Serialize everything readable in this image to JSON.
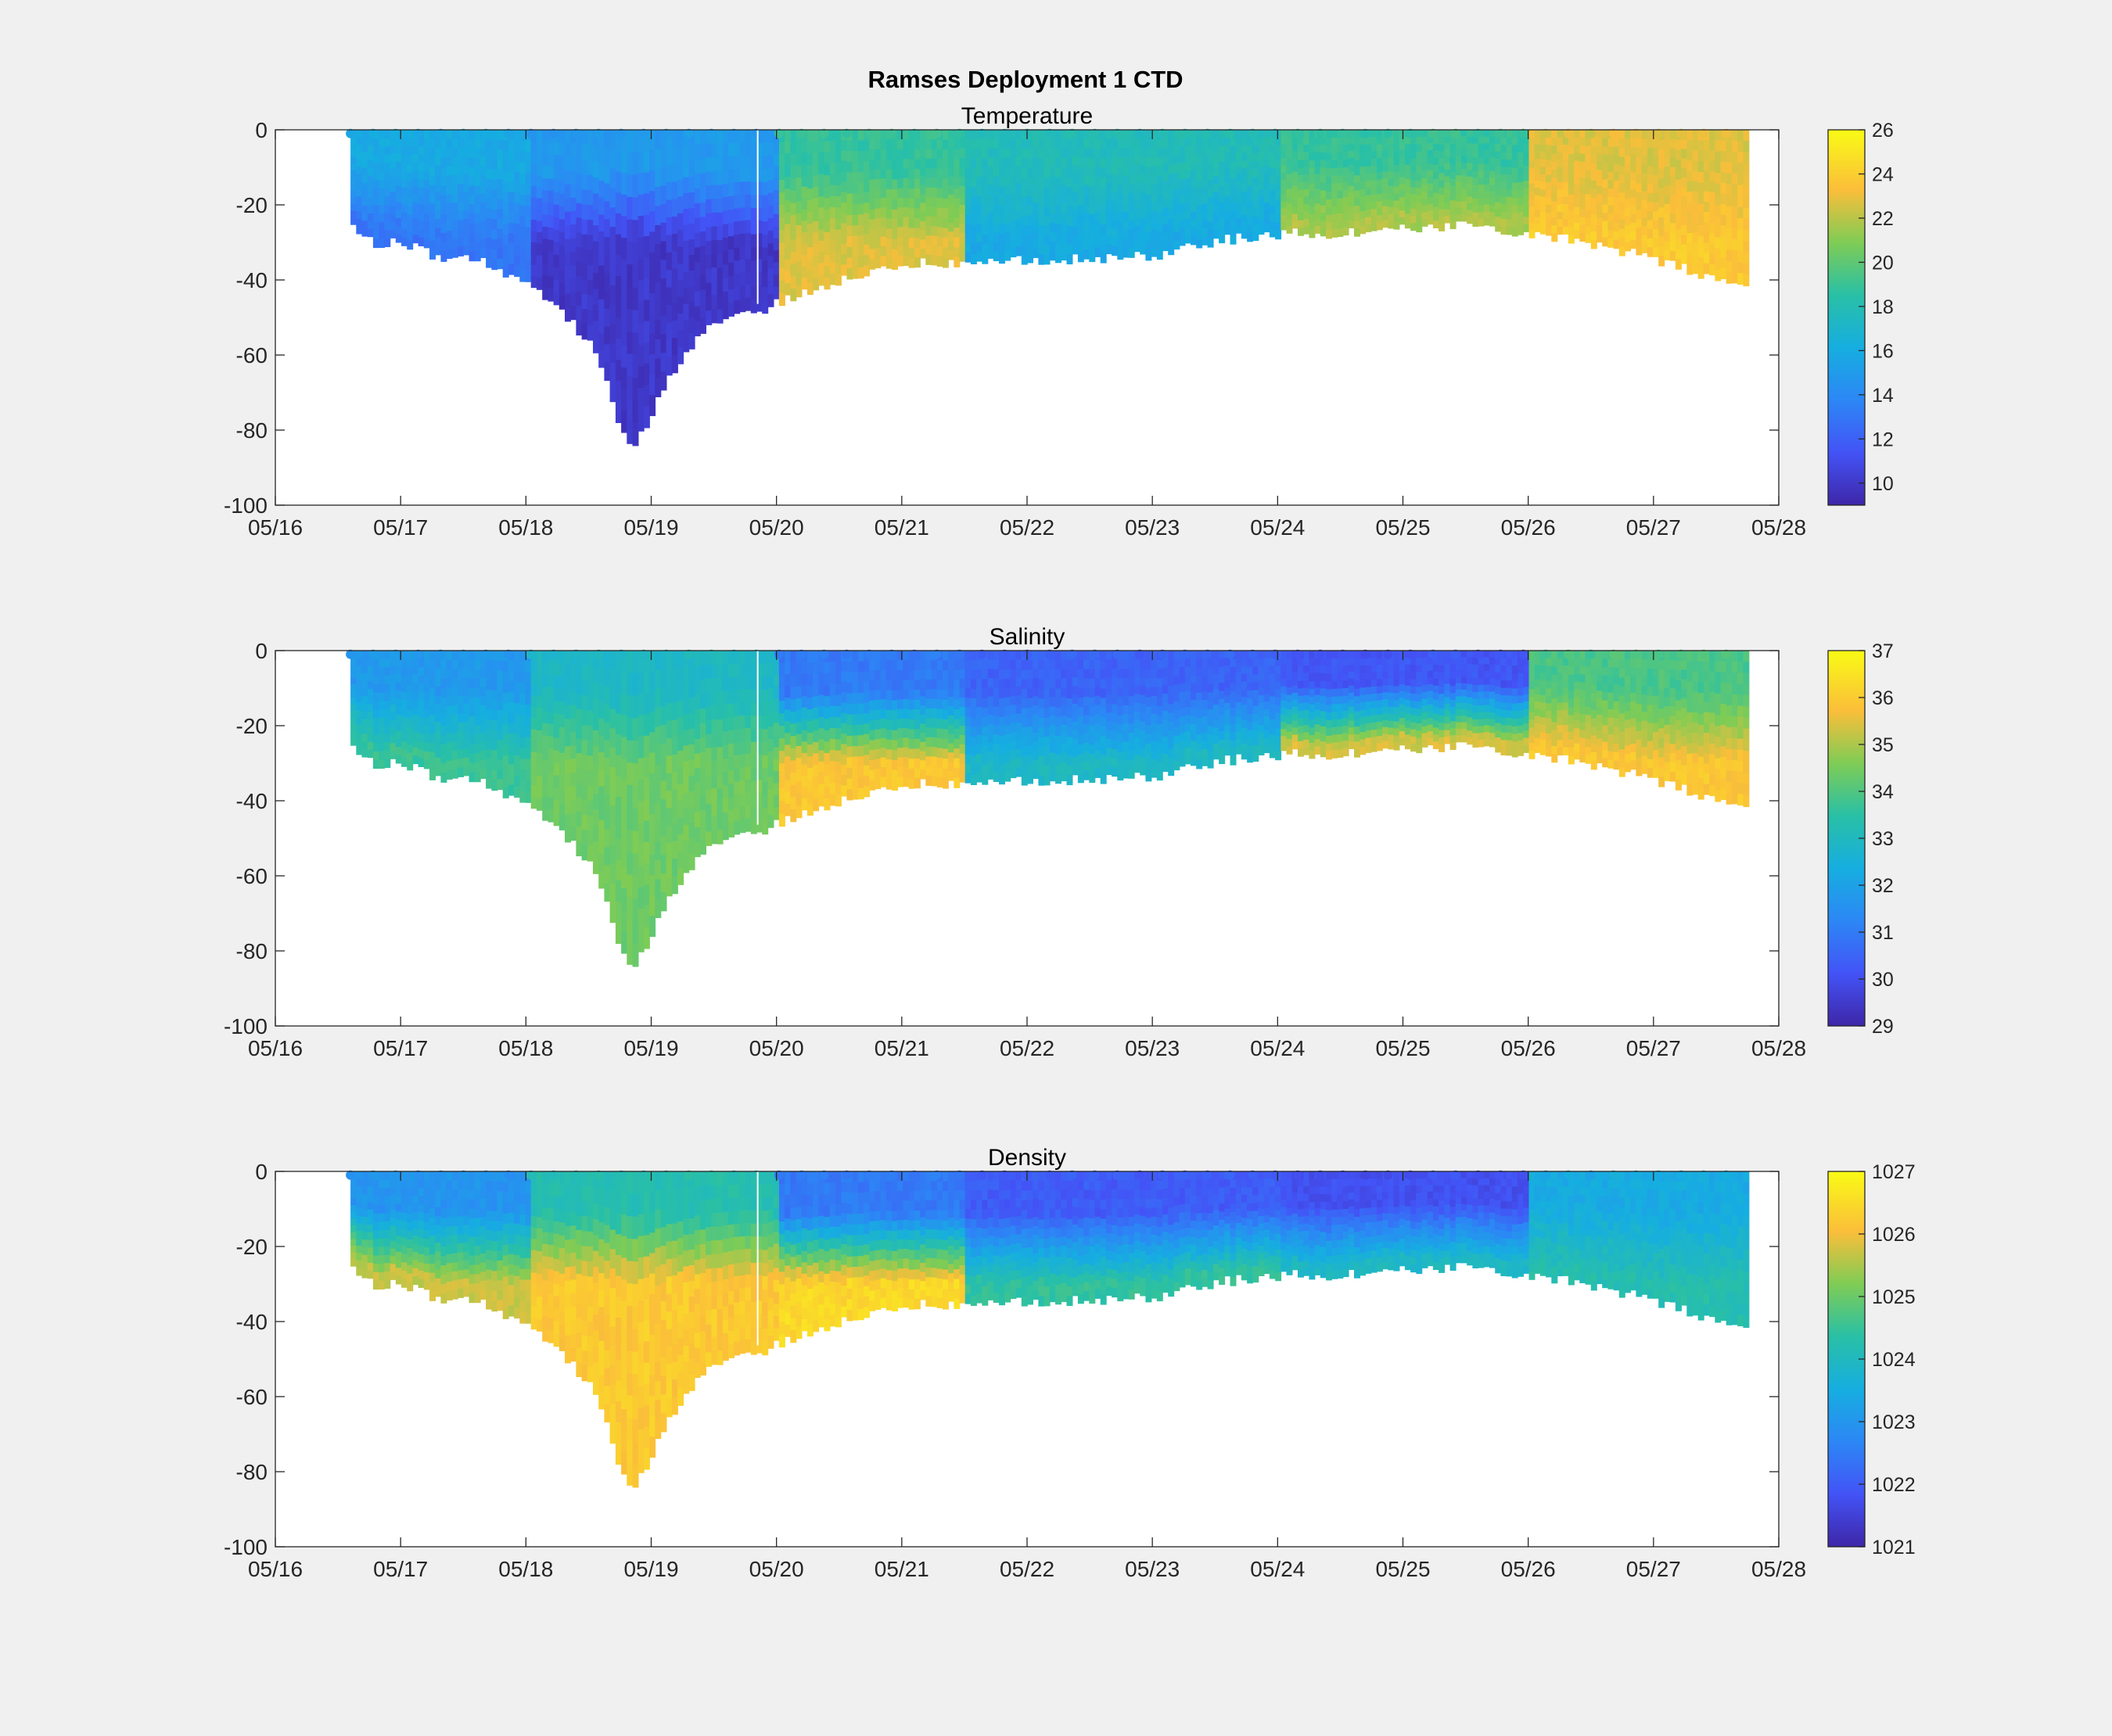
{
  "figure": {
    "title": "Ramses Deployment 1 CTD"
  },
  "chart_data": [
    {
      "type": "heatmap",
      "title": "Temperature",
      "xlabel": "",
      "ylabel": "",
      "x_ticks": [
        "05/16",
        "05/17",
        "05/18",
        "05/19",
        "05/20",
        "05/21",
        "05/22",
        "05/23",
        "05/24",
        "05/25",
        "05/26",
        "05/27",
        "05/28"
      ],
      "xlim": [
        "05/16",
        "05/28"
      ],
      "y_ticks": [
        0,
        -20,
        -40,
        -60,
        -80,
        -100
      ],
      "ylim": [
        -100,
        0
      ],
      "colorbar": {
        "ticks": [
          10,
          12,
          14,
          16,
          18,
          20,
          22,
          24,
          26
        ],
        "range": [
          9,
          26
        ]
      },
      "profile_bottom_depth": {
        "day": [
          16.6,
          16.8,
          17.0,
          17.3,
          17.6,
          17.9,
          18.2,
          18.5,
          18.8,
          18.9,
          19.1,
          19.4,
          19.8,
          20.2,
          20.6,
          21.0,
          21.5,
          22.0,
          22.5,
          23.0,
          23.5,
          24.0,
          24.5,
          25.0,
          25.5,
          26.0,
          26.5,
          27.0,
          27.5,
          27.75
        ],
        "depth": [
          -25,
          -29,
          -28,
          -33,
          -33,
          -38,
          -45,
          -55,
          -83,
          -80,
          -65,
          -52,
          -47,
          -42,
          -37,
          -34,
          -34,
          -33,
          -33,
          -32,
          -28,
          -26,
          -26,
          -25,
          -24,
          -26,
          -29,
          -33,
          -38,
          -40
        ]
      },
      "approx_values": {
        "note": "representative readings of the colour field",
        "regions": [
          {
            "days": "05/16.6-05/18",
            "surface_0_to_-20": 16,
            "deep_-20_to_bottom": 13
          },
          {
            "days": "05/18-05/20",
            "surface_0_to_-20": 15,
            "deep_-20_to_bottom": 10
          },
          {
            "days": "05/20.3-05/21.5",
            "surface_0_to_-20": 19,
            "deep_-20_to_bottom": 23
          },
          {
            "days": "05/21.5-05/24",
            "surface_0_to_-20": 18,
            "deep_-20_to_bottom": 16
          },
          {
            "days": "05/24-05/26",
            "surface_0_to_-20": 19,
            "deep_-20_to_bottom": 22
          },
          {
            "days": "05/26-05/27.75",
            "surface_0_to_-20": 23,
            "deep_-20_to_bottom": 24
          }
        ]
      }
    },
    {
      "type": "heatmap",
      "title": "Salinity",
      "xlabel": "",
      "ylabel": "",
      "x_ticks": [
        "05/16",
        "05/17",
        "05/18",
        "05/19",
        "05/20",
        "05/21",
        "05/22",
        "05/23",
        "05/24",
        "05/25",
        "05/26",
        "05/27",
        "05/28"
      ],
      "xlim": [
        "05/16",
        "05/28"
      ],
      "y_ticks": [
        0,
        -20,
        -40,
        -60,
        -80,
        -100
      ],
      "ylim": [
        -100,
        0
      ],
      "colorbar": {
        "ticks": [
          29,
          30,
          31,
          32,
          33,
          34,
          35,
          36,
          37
        ],
        "range": [
          29,
          37
        ]
      },
      "approx_values": {
        "note": "representative readings of the colour field",
        "regions": [
          {
            "days": "05/16.6-05/18",
            "surface_0_to_-20": 31.8,
            "deep_-20_to_bottom": 33.8
          },
          {
            "days": "05/18-05/20",
            "surface_0_to_-20": 33,
            "deep_-20_to_bottom": 34.5
          },
          {
            "days": "05/20.3-05/21.5",
            "surface_0_to_-20": 31,
            "deep_-20_to_bottom": 36
          },
          {
            "days": "05/21.5-05/24",
            "surface_0_to_-20": 30.5,
            "deep_-20_to_bottom": 33
          },
          {
            "days": "05/24-05/26",
            "surface_0_to_-20": 30.2,
            "deep_-20_to_bottom": 35.5
          },
          {
            "days": "05/26-05/27.75",
            "surface_0_to_-20": 34,
            "deep_-20_to_bottom": 36
          }
        ]
      }
    },
    {
      "type": "heatmap",
      "title": "Density",
      "xlabel": "",
      "ylabel": "",
      "x_ticks": [
        "05/16",
        "05/17",
        "05/18",
        "05/19",
        "05/20",
        "05/21",
        "05/22",
        "05/23",
        "05/24",
        "05/25",
        "05/26",
        "05/27",
        "05/28"
      ],
      "xlim": [
        "05/16",
        "05/28"
      ],
      "y_ticks": [
        0,
        -20,
        -40,
        -60,
        -80,
        -100
      ],
      "ylim": [
        -100,
        0
      ],
      "colorbar": {
        "ticks": [
          1021,
          1022,
          1023,
          1024,
          1025,
          1026,
          1027
        ],
        "range": [
          1021,
          1027
        ]
      },
      "approx_values": {
        "note": "representative readings of the colour field",
        "regions": [
          {
            "days": "05/16.6-05/18",
            "surface_0_to_-20": 1023,
            "deep_-20_to_bottom": 1025.8
          },
          {
            "days": "05/18-05/20",
            "surface_0_to_-20": 1024.3,
            "deep_-20_to_bottom": 1026.3
          },
          {
            "days": "05/20.3-05/21.5",
            "surface_0_to_-20": 1022.5,
            "deep_-20_to_bottom": 1026.5
          },
          {
            "days": "05/21.5-05/24",
            "surface_0_to_-20": 1022,
            "deep_-20_to_bottom": 1024.5
          },
          {
            "days": "05/24-05/26",
            "surface_0_to_-20": 1021.8,
            "deep_-20_to_bottom": 1024
          },
          {
            "days": "05/26-05/27.75",
            "surface_0_to_-20": 1023.5,
            "deep_-20_to_bottom": 1024.3
          }
        ]
      }
    }
  ]
}
